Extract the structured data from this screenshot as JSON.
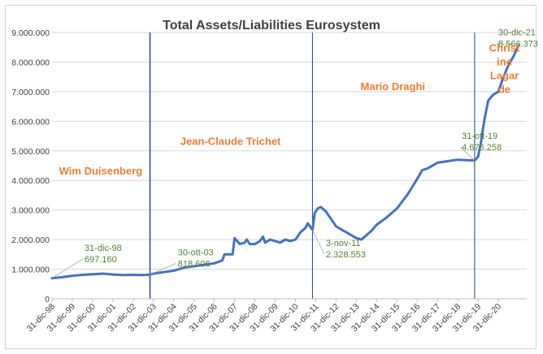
{
  "chart_data": {
    "type": "line",
    "title": "Total Assets/Liabilities Eurosystem",
    "xlabel": "",
    "ylabel": "",
    "ylim": [
      0,
      9000000
    ],
    "y_tick_labels": [
      "0",
      "1.000.000",
      "2.000.000",
      "3.000.000",
      "4.000.000",
      "5.000.000",
      "6.000.000",
      "7.000.000",
      "8.000.000",
      "9.000.000"
    ],
    "x_tick_labels": [
      "31-dic-98",
      "31-dic-99",
      "31-dic-00",
      "31-dic-01",
      "31-dic-02",
      "31-dic-03",
      "31-dic-04",
      "31-dic-05",
      "31-dic-06",
      "31-dic-07",
      "31-dic-08",
      "31-dic-09",
      "31-dic-10",
      "31-dic-11",
      "31-dic-12",
      "31-dic-13",
      "31-dic-14",
      "31-dic-15",
      "31-dic-16",
      "31-dic-17",
      "31-dic-18",
      "31-dic-19",
      "31-dic-20"
    ],
    "grid": "horizontal",
    "series": [
      {
        "color": "#4472c4",
        "x": [
          1999.0,
          1999.5,
          2000.0,
          2000.5,
          2001.0,
          2001.5,
          2002.0,
          2002.5,
          2003.0,
          2003.5,
          2003.83,
          2004.0,
          2004.5,
          2005.0,
          2005.5,
          2006.0,
          2006.5,
          2007.0,
          2007.4,
          2007.5,
          2007.6,
          2007.9,
          2008.0,
          2008.25,
          2008.5,
          2008.6,
          2008.75,
          2009.0,
          2009.25,
          2009.4,
          2009.5,
          2009.75,
          2010.0,
          2010.25,
          2010.5,
          2010.75,
          2011.0,
          2011.25,
          2011.5,
          2011.6,
          2011.84,
          2011.95,
          2012.1,
          2012.25,
          2012.5,
          2012.75,
          2013.0,
          2013.25,
          2013.5,
          2013.75,
          2014.0,
          2014.25,
          2014.5,
          2014.75,
          2015.0,
          2015.5,
          2016.0,
          2016.5,
          2017.0,
          2017.25,
          2017.5,
          2018.0,
          2018.5,
          2019.0,
          2019.5,
          2019.83,
          2020.0,
          2020.15,
          2020.3,
          2020.5,
          2020.75,
          2021.0,
          2021.25,
          2021.5,
          2021.75,
          2022.0
        ],
        "values": [
          697160,
          730000,
          780000,
          810000,
          830000,
          850000,
          820000,
          800000,
          810000,
          800000,
          818606,
          850000,
          900000,
          950000,
          1050000,
          1100000,
          1150000,
          1200000,
          1300000,
          1500000,
          1500000,
          1500000,
          2050000,
          1850000,
          1900000,
          2000000,
          1850000,
          1850000,
          1950000,
          2100000,
          1900000,
          2000000,
          1950000,
          1900000,
          2000000,
          1950000,
          2000000,
          2250000,
          2400000,
          2550000,
          2328553,
          2900000,
          3050000,
          3100000,
          2950000,
          2700000,
          2450000,
          2350000,
          2250000,
          2150000,
          2050000,
          2000000,
          2150000,
          2300000,
          2500000,
          2750000,
          3050000,
          3500000,
          4050000,
          4350000,
          4400000,
          4600000,
          4650000,
          4700000,
          4680000,
          4676258,
          4800000,
          5300000,
          6000000,
          6700000,
          6900000,
          7000000,
          7500000,
          7900000,
          8200000,
          8566373
        ]
      }
    ],
    "vertical_lines_x": [
      2003.83,
      2011.84,
      2019.83
    ],
    "eras": [
      {
        "label": "Wim Duisenberg",
        "x_mid": 2001.4,
        "y": 4200000
      },
      {
        "label": "Jean-Claude Trichet",
        "x_mid": 2007.8,
        "y": 5200000
      },
      {
        "label": "Mario Draghi",
        "x_mid": 2015.8,
        "y": 7050000
      },
      {
        "label_lines": [
          "Christ",
          "ine",
          "Lagar",
          "de"
        ],
        "x_mid": 2021.3,
        "y": 8350000
      }
    ],
    "annotations": [
      {
        "lines": [
          "31-dic-98",
          "697.160"
        ],
        "x": 1999.0,
        "y": 697160,
        "tx": 2000.6,
        "ty": 1620000
      },
      {
        "lines": [
          "30-ott-03",
          "818.606"
        ],
        "x": 2003.83,
        "y": 818606,
        "tx": 2005.2,
        "ty": 1470000
      },
      {
        "lines": [
          "3-nov-11",
          "2.328.553"
        ],
        "x": 2011.84,
        "y": 2328553,
        "tx": 2012.5,
        "ty": 1780000
      },
      {
        "lines": [
          "31-ott-19",
          "4.676.258"
        ],
        "x": 2019.83,
        "y": 4676258,
        "tx": 2019.2,
        "ty": 5400000
      },
      {
        "lines": [
          "30-dic-21",
          "8.566.373"
        ],
        "x": 2022.0,
        "y": 8566373,
        "tx": 2021.0,
        "ty": 8900000
      }
    ],
    "colors": {
      "line": "#4472c4",
      "era_label": "#ed7d31",
      "annotation": "#548235",
      "vline": "#2f5597",
      "grid": "#d9d9d9"
    }
  }
}
